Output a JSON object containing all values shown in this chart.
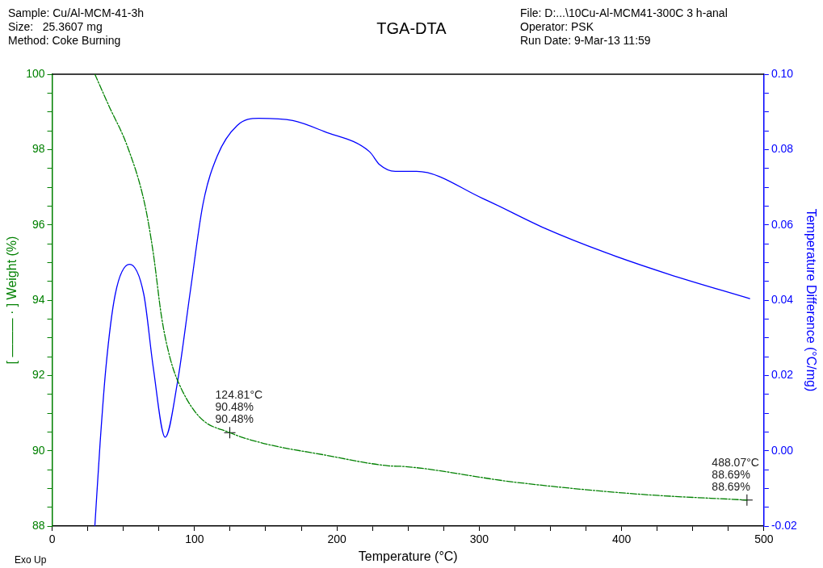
{
  "chart_data": {
    "type": "line",
    "title": "TGA-DTA",
    "xlabel": "Temperature (°C)",
    "ylabel": "[ ——— · ] Weight (%)",
    "y2label": "Temperature Difference (°C/mg)",
    "xlim": [
      0,
      500
    ],
    "xticks": [
      0,
      {
        "value": 25,
        "label": null
      },
      {
        "value": 50,
        "label": null
      },
      {
        "value": 75,
        "label": null
      },
      100,
      {
        "value": 125,
        "label": null
      },
      {
        "value": 150,
        "label": null
      },
      {
        "value": 175,
        "label": null
      },
      200,
      {
        "value": 225,
        "label": null
      },
      {
        "value": 250,
        "label": null
      },
      {
        "value": 275,
        "label": null
      },
      300,
      {
        "value": 325,
        "label": null
      },
      {
        "value": 350,
        "label": null
      },
      {
        "value": 375,
        "label": null
      },
      400,
      {
        "value": 425,
        "label": null
      },
      {
        "value": 450,
        "label": null
      },
      {
        "value": 475,
        "label": null
      },
      500
    ],
    "ylim": [
      88,
      100
    ],
    "yticks": [
      88,
      {
        "value": 88.5,
        "label": null
      },
      {
        "value": 89,
        "label": null
      },
      {
        "value": 89.5,
        "label": null
      },
      90,
      {
        "value": 90.5,
        "label": null
      },
      {
        "value": 91,
        "label": null
      },
      {
        "value": 91.5,
        "label": null
      },
      92,
      {
        "value": 92.5,
        "label": null
      },
      {
        "value": 93,
        "label": null
      },
      {
        "value": 93.5,
        "label": null
      },
      94,
      {
        "value": 94.5,
        "label": null
      },
      {
        "value": 95,
        "label": null
      },
      {
        "value": 95.5,
        "label": null
      },
      96,
      {
        "value": 96.5,
        "label": null
      },
      {
        "value": 97,
        "label": null
      },
      {
        "value": 97.5,
        "label": null
      },
      98,
      {
        "value": 98.5,
        "label": null
      },
      {
        "value": 99,
        "label": null
      },
      {
        "value": 99.5,
        "label": null
      },
      100
    ],
    "y2lim": [
      -0.02,
      0.1
    ],
    "y2ticks": [
      {
        "value": -0.02,
        "label": "-0.02"
      },
      {
        "value": -0.015,
        "label": null
      },
      {
        "value": -0.01,
        "label": null
      },
      {
        "value": -0.005,
        "label": null
      },
      {
        "value": 0,
        "label": "0.00"
      },
      {
        "value": 0.005,
        "label": null
      },
      {
        "value": 0.01,
        "label": null
      },
      {
        "value": 0.015,
        "label": null
      },
      {
        "value": 0.02,
        "label": "0.02"
      },
      {
        "value": 0.025,
        "label": null
      },
      {
        "value": 0.03,
        "label": null
      },
      {
        "value": 0.035,
        "label": null
      },
      {
        "value": 0.04,
        "label": "0.04"
      },
      {
        "value": 0.045,
        "label": null
      },
      {
        "value": 0.05,
        "label": null
      },
      {
        "value": 0.055,
        "label": null
      },
      {
        "value": 0.06,
        "label": "0.06"
      },
      {
        "value": 0.065,
        "label": null
      },
      {
        "value": 0.07,
        "label": null
      },
      {
        "value": 0.075,
        "label": null
      },
      {
        "value": 0.08,
        "label": "0.08"
      },
      {
        "value": 0.085,
        "label": null
      },
      {
        "value": 0.09,
        "label": null
      },
      {
        "value": 0.095,
        "label": null
      },
      {
        "value": 0.1,
        "label": "0.10"
      }
    ],
    "grid": false,
    "legend": false,
    "marker": "none",
    "series": [
      {
        "color": "#008000",
        "line_style": "dashed",
        "x": [
          30,
          40,
          53,
          65,
          71,
          77,
          83,
          89,
          103.4,
          124.81,
          147,
          191,
          236,
          248,
          324,
          411,
          488
        ],
        "values": [
          100,
          99.15,
          98.07,
          96.56,
          95.26,
          93.52,
          92.44,
          91.79,
          90.9,
          90.48,
          90.21,
          89.89,
          89.6,
          89.58,
          89.17,
          88.85,
          88.69
        ]
      },
      {
        "color": "#0000ff",
        "line_style": "solid",
        "axis": "y2",
        "x": [
          30,
          33.7,
          37.8,
          44.3,
          54.4,
          64.4,
          71,
          79.4,
          88,
          97,
          106,
          116,
          130,
          145,
          169,
          191,
          223,
          230,
          241,
          256,
          302,
          346,
          389,
          433,
          490
        ],
        "values": [
          -0.02,
          0.0021,
          0.0222,
          0.0415,
          0.0495,
          0.0415,
          0.0222,
          0.0036,
          0.0181,
          0.0422,
          0.0656,
          0.0783,
          0.0864,
          0.0883,
          0.0877,
          0.0848,
          0.0794,
          0.076,
          0.0742,
          0.0742,
          0.0671,
          0.0591,
          0.0526,
          0.0469,
          0.0404
        ]
      }
    ],
    "annotations": [
      "Sample: Cu/Al-MCM-41-3h",
      "Size:   25.3607 mg",
      "Method: Coke Burning",
      "File: D:...\\10Cu-Al-MCM41-300C 3 h-anal",
      "Operator: PSK",
      "Run Date: 9-Mar-13 11:59",
      "Exo Up",
      {
        "text": "124.81°C\n90.48%\n90.48%",
        "x": 124.81,
        "y": 90.48
      },
      {
        "text": "488.07°C\n88.69%\n88.69%",
        "x": 488.07,
        "y": 88.69
      }
    ]
  }
}
